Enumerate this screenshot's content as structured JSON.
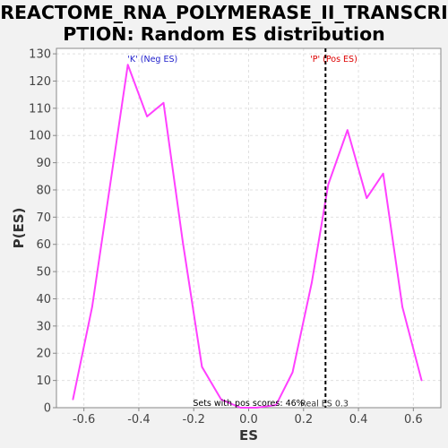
{
  "title_line1": "REACTOME_RNA_POLYMERASE_II_TRANSCRI",
  "title_line2": "PTION: Random ES distribution",
  "chart_data": {
    "type": "line",
    "xlabel": "ES",
    "ylabel": "P(ES)",
    "xlim": [
      -0.7,
      0.7
    ],
    "ylim": [
      0,
      132
    ],
    "xticks": [
      -0.6,
      -0.4,
      -0.2,
      0.0,
      0.2,
      0.4,
      0.6
    ],
    "xtick_labels": [
      "-0.6",
      "-0.4",
      "-0.2",
      "0.0",
      "0.2",
      "0.4",
      "0.6"
    ],
    "yticks": [
      0,
      10,
      20,
      30,
      40,
      50,
      60,
      70,
      80,
      90,
      100,
      110,
      120,
      130
    ],
    "ytick_labels": [
      "0",
      "10",
      "20",
      "30",
      "40",
      "50",
      "60",
      "70",
      "80",
      "90",
      "100",
      "110",
      "120",
      "130"
    ],
    "grid": true,
    "series": [
      {
        "color": "#ff40ff",
        "x": [
          -0.64,
          -0.57,
          -0.44,
          -0.37,
          -0.31,
          -0.24,
          -0.17,
          -0.1,
          -0.03,
          0.03,
          0.1,
          0.16,
          0.23,
          0.29,
          0.36,
          0.43,
          0.49,
          0.56,
          0.63
        ],
        "y": [
          3,
          37,
          126,
          107,
          112,
          61,
          15,
          3,
          0,
          0,
          1,
          13,
          46,
          82,
          102,
          77,
          86,
          37,
          10
        ]
      }
    ],
    "real_es_line": {
      "x": 0.28,
      "color": "#000000",
      "label": "Real ES 0.3"
    },
    "annotations": [
      {
        "text": "'K' (Neg ES)",
        "color": "#2222cc",
        "x": -0.35,
        "y": 128
      },
      {
        "text": "'P' (Pos ES)",
        "color": "#dd0000",
        "x": 0.31,
        "y": 128
      },
      {
        "text": "Sets with pos scores: 46%",
        "color": "#000000",
        "x": 0.0,
        "y": 1.6
      }
    ]
  }
}
